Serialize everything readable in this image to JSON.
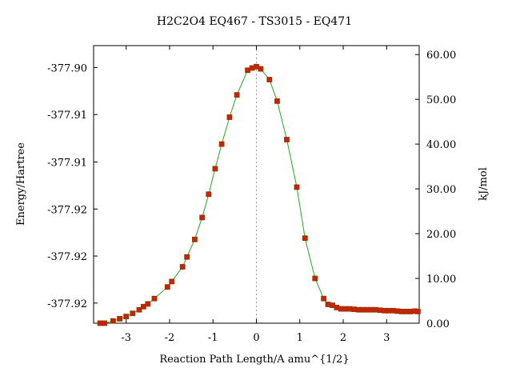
{
  "chart_data": {
    "type": "scatter",
    "title": "H2C2O4    EQ467 - TS3015 - EQ471",
    "xlabel": "Reaction Path Length/A amu^{1/2}",
    "ylabel_left": "Energy/Hartree",
    "ylabel_right": "kJ/mol",
    "xlim": [
      -3.75,
      3.75
    ],
    "ylim_right": [
      0,
      62
    ],
    "x_ticks": [
      -3,
      -2,
      -1,
      0,
      1,
      2,
      3
    ],
    "x_tick_labels": [
      "-3",
      "-2",
      "-1",
      "0",
      "1",
      "2",
      "3"
    ],
    "left_ticks_kjmol": [
      57.1,
      46.6,
      36.0,
      25.5,
      15.0,
      4.5
    ],
    "left_tick_labels": [
      "-377.90",
      "-377.91",
      "-377.91",
      "-377.92",
      "-377.92",
      "-377.92"
    ],
    "right_ticks": [
      0,
      10,
      20,
      30,
      40,
      50,
      60
    ],
    "right_tick_labels": [
      "0.00",
      "10.00",
      "20.00",
      "30.00",
      "40.00",
      "50.00",
      "60.00"
    ],
    "ts_marker_x": 0,
    "colors": {
      "line": "#22aa22",
      "marker": "#cc2200",
      "marker_edge": "#8a3a00",
      "ts_line": "#999999"
    },
    "series": [
      {
        "x": [
          -3.6,
          -3.5,
          -3.3,
          -3.15,
          -3.0,
          -2.85,
          -2.7,
          -2.6,
          -2.5,
          -2.35,
          -2.05,
          -1.95,
          -1.7,
          -1.6,
          -1.42,
          -1.25,
          -1.1,
          -0.95,
          -0.8,
          -0.62,
          -0.45,
          -0.2,
          -0.1,
          0.0,
          0.1,
          0.3,
          0.48,
          0.7,
          0.93,
          1.12,
          1.35,
          1.55,
          1.65,
          1.75,
          1.85,
          1.95,
          2.05,
          2.15,
          2.25,
          2.35,
          2.45,
          2.55,
          2.65,
          2.75,
          2.85,
          2.95,
          3.05,
          3.15,
          3.25,
          3.35,
          3.45,
          3.55,
          3.65,
          3.72
        ],
        "y": [
          0.0,
          0.0,
          0.5,
          1.0,
          1.5,
          2.2,
          3.0,
          3.7,
          4.3,
          5.5,
          8.1,
          9.3,
          12.6,
          14.8,
          18.7,
          23.6,
          28.8,
          34.5,
          40.0,
          46.0,
          51.0,
          56.5,
          57.0,
          57.3,
          56.8,
          54.4,
          49.6,
          41.0,
          30.4,
          19.0,
          10.0,
          5.5,
          4.2,
          4.0,
          3.5,
          3.2,
          3.2,
          3.2,
          3.1,
          3.0,
          3.0,
          3.0,
          3.0,
          3.0,
          2.9,
          2.8,
          2.8,
          2.8,
          2.7,
          2.6,
          2.6,
          2.6,
          2.7,
          2.6
        ]
      }
    ]
  }
}
